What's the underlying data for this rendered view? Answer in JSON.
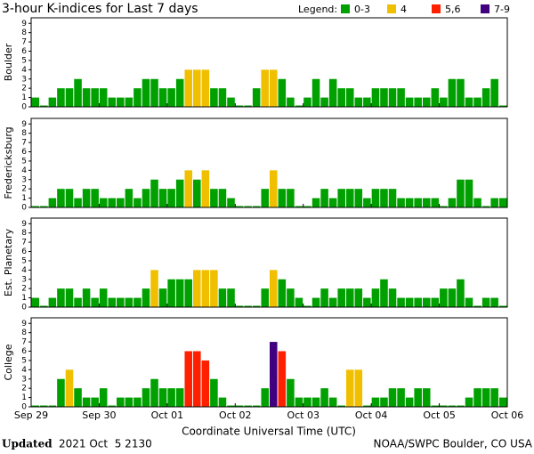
{
  "chart_data": {
    "type": "bar",
    "title": "3-hour K-indices for Last 7 days",
    "legend_title": "Legend:",
    "legend": [
      {
        "label": "0-3",
        "color": "#00a000"
      },
      {
        "label": "4",
        "color": "#f0c000"
      },
      {
        "label": "5,6",
        "color": "#ff2000"
      },
      {
        "label": "7-9",
        "color": "#400080"
      }
    ],
    "ylim": [
      0,
      9.6
    ],
    "yticks": [
      0,
      1,
      2,
      3,
      4,
      5,
      6,
      7,
      8,
      9
    ],
    "x_label": "Coordinate Universal Time (UTC)",
    "xticks": [
      "Sep 29",
      "Sep 30",
      "Oct 01",
      "Oct 02",
      "Oct 03",
      "Oct 04",
      "Oct 05",
      "Oct 06"
    ],
    "series": [
      {
        "name": "Boulder",
        "values": [
          1,
          0,
          1,
          2,
          2,
          3,
          2,
          2,
          2,
          1,
          1,
          1,
          2,
          3,
          3,
          2,
          2,
          3,
          4,
          4,
          4,
          2,
          2,
          1,
          0,
          0,
          2,
          4,
          4,
          3,
          1,
          0,
          1,
          3,
          1,
          3,
          2,
          2,
          1,
          1,
          2,
          2,
          2,
          2,
          1,
          1,
          1,
          2,
          1,
          3,
          3,
          1,
          1,
          2,
          3,
          0
        ]
      },
      {
        "name": "Fredericksburg",
        "values": [
          0,
          0,
          1,
          2,
          2,
          1,
          2,
          2,
          1,
          1,
          1,
          2,
          1,
          2,
          3,
          2,
          2,
          3,
          4,
          3,
          4,
          2,
          2,
          1,
          0,
          0,
          0,
          2,
          4,
          2,
          2,
          0,
          0,
          1,
          2,
          1,
          2,
          2,
          2,
          1,
          2,
          2,
          2,
          1,
          1,
          1,
          1,
          1,
          0,
          1,
          3,
          3,
          1,
          0,
          1,
          1
        ]
      },
      {
        "name": "Est. Planetary",
        "values": [
          1,
          0,
          1,
          2,
          2,
          1,
          2,
          1,
          2,
          1,
          1,
          1,
          1,
          2,
          4,
          2,
          3,
          3,
          3,
          4,
          4,
          4,
          2,
          2,
          0,
          0,
          0,
          2,
          4,
          3,
          2,
          1,
          0,
          1,
          2,
          1,
          2,
          2,
          2,
          1,
          2,
          3,
          2,
          1,
          1,
          1,
          1,
          1,
          2,
          2,
          3,
          1,
          0,
          1,
          1,
          0
        ]
      },
      {
        "name": "College",
        "values": [
          0,
          0,
          0,
          3,
          4,
          2,
          1,
          1,
          2,
          0,
          1,
          1,
          1,
          2,
          3,
          2,
          2,
          2,
          6,
          6,
          5,
          3,
          1,
          0,
          0,
          0,
          0,
          2,
          7,
          6,
          3,
          1,
          1,
          1,
          2,
          1,
          0,
          4,
          4,
          0,
          1,
          1,
          2,
          2,
          1,
          2,
          2,
          0,
          0,
          0,
          0,
          1,
          2,
          2,
          2,
          1
        ]
      }
    ],
    "footer_bold": "Updated",
    "footer_date": "2021 Oct  5 2130",
    "footer_right": "NOAA/SWPC Boulder, CO USA"
  }
}
